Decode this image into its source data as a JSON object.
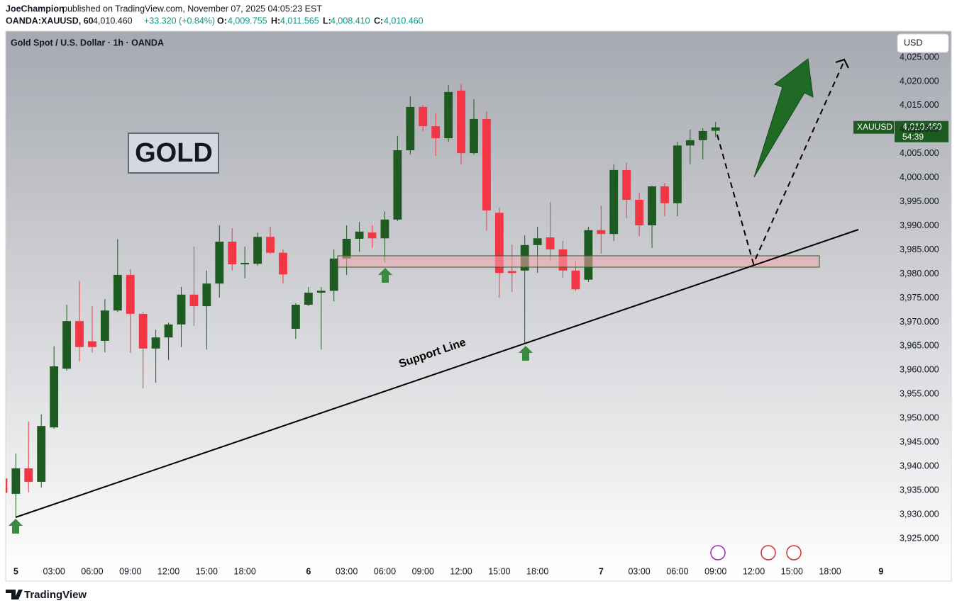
{
  "chart_data": {
    "type": "candlestick",
    "header": {
      "author": "JoeChampion",
      "published": "published on TradingView.com, November 07, 2025 04:05:23 EST",
      "symbol": "OANDA:XAUUSD, 60",
      "last": "4,010.460",
      "change": "+33.320 (+0.84%)",
      "o_label": "O:",
      "o": "4,009.755",
      "h_label": "H:",
      "h": "4,011.565",
      "l_label": "L:",
      "l": "4,008.410",
      "c_label": "C:",
      "c": "4,010.460"
    },
    "title": "Gold Spot / U.S. Dollar · 1h · OANDA",
    "currency": "USD",
    "annotations": {
      "gold": "GOLD",
      "support": "Support Line"
    },
    "price_tag": {
      "symbol": "XAUUSD",
      "price": "4,010.460",
      "countdown": "54:39"
    },
    "brand": "TradingView",
    "up_color": "#1e5b20",
    "down_color": "#f23645",
    "open": [
      3937.5,
      3934.3,
      3939.6,
      3936.8,
      3948.1,
      3960.3,
      3970.2,
      3966.0,
      3966.1,
      3972.4,
      3979.8,
      3971.7,
      3964.5,
      3966.8,
      3969.5,
      3975.7,
      3973.3,
      3978.0,
      3986.7,
      3982.0,
      3982.1,
      3987.7,
      3984.4,
      3968.6,
      3973.6,
      3976.1,
      3976.5,
      3983.2,
      3987.3,
      3988.6,
      3987.4,
      3991.3,
      4005.7,
      4014.7,
      4010.7,
      4008.2,
      4018.1,
      4005.1,
      4012.2,
      3992.7,
      3980.6,
      3980.7,
      3986.0,
      3987.6,
      3985.1,
      3980.7,
      3978.8,
      3989.1,
      3988.3,
      4001.6,
      3995.4,
      3990.1,
      3998.2,
      3994.7,
      4006.7,
      4007.8,
      4009.755
    ],
    "high": [
      3938,
      3942.7,
      3949.3,
      3950.8,
      3965.0,
      3973.6,
      3978.5,
      3973.3,
      3974.8,
      3987.2,
      3981.0,
      3972.1,
      3968.4,
      3969.9,
      3977.3,
      3985.7,
      3980.7,
      3990.1,
      3989.5,
      3985.7,
      3988.6,
      3989.8,
      3985.1,
      3973.9,
      3977.3,
      3977.3,
      3985.1,
      3990.1,
      3990.8,
      3990.1,
      3993.0,
      4008.7,
      4016.9,
      4015.1,
      4013.4,
      4019.3,
      4019.4,
      4016.3,
      4013.8,
      3993.8,
      3986.1,
      3988.0,
      3989.8,
      3995.0,
      3986.9,
      3982.7,
      3989.8,
      3994.2,
      4002.8,
      4003.1,
      3996.9,
      3998.3,
      3998.9,
      4007.5,
      4010.0,
      4010.3,
      4011.565
    ],
    "low": [
      3934,
      3929.4,
      3934.6,
      3935.6,
      3947.8,
      3959.9,
      3961.8,
      3963.7,
      3963.7,
      3972.1,
      3963.6,
      3956.2,
      3957.4,
      3962.1,
      3964.8,
      3969.2,
      3964.3,
      3975.1,
      3980.7,
      3979.1,
      3981.7,
      3984.2,
      3978.0,
      3966.5,
      3973.3,
      3964.3,
      3974.3,
      3979.8,
      3984.6,
      3985.4,
      3982.4,
      3991.0,
      4004.8,
      4009.7,
      4004.5,
      4007.5,
      4002.8,
      4004.8,
      3989.0,
      3975.1,
      3976.3,
      3965.5,
      3980.2,
      3982.7,
      3979.2,
      3976.5,
      3978.3,
      3984.2,
      3986.9,
      3991.6,
      3987.9,
      3985.4,
      3992.0,
      3992.0,
      4002.8,
      4003.8,
      4008.41
    ],
    "close": [
      3934.5,
      3939.6,
      3936.8,
      3948.4,
      3960.8,
      3970.2,
      3964.8,
      3964.8,
      3972.4,
      3979.8,
      3971.7,
      3964.5,
      3966.8,
      3969.5,
      3975.7,
      3973.3,
      3978.0,
      3986.7,
      3982.0,
      3982.3,
      3987.7,
      3984.4,
      3979.9,
      3973.6,
      3976.1,
      3976.5,
      3983.2,
      3987.3,
      3988.8,
      3987.4,
      3991.3,
      4005.7,
      4014.7,
      4010.7,
      4008.2,
      4017.8,
      4005.1,
      4012.2,
      3993.2,
      3980.2,
      3980.2,
      3986.0,
      3987.4,
      3985.1,
      3980.7,
      3976.8,
      3989.1,
      3988.3,
      4001.6,
      3995.4,
      3990.1,
      3998.2,
      3994.7,
      4006.7,
      4007.8,
      4009.7,
      4010.46
    ],
    "xlim": [
      0.2,
      69.9
    ],
    "xticks": [
      {
        "value": 1,
        "label": "5"
      },
      {
        "value": 4,
        "label": "03:00"
      },
      {
        "value": 7,
        "label": "06:00"
      },
      {
        "value": 10,
        "label": "09:00"
      },
      {
        "value": 13,
        "label": "12:00"
      },
      {
        "value": 16,
        "label": "15:00"
      },
      {
        "value": 19,
        "label": "18:00"
      },
      {
        "value": 24,
        "label": "6"
      },
      {
        "value": 27,
        "label": "03:00"
      },
      {
        "value": 30,
        "label": "06:00"
      },
      {
        "value": 33,
        "label": "09:00"
      },
      {
        "value": 36,
        "label": "12:00"
      },
      {
        "value": 39,
        "label": "15:00"
      },
      {
        "value": 42,
        "label": "18:00"
      },
      {
        "value": 47,
        "label": "7"
      },
      {
        "value": 50,
        "label": "03:00"
      },
      {
        "value": 53,
        "label": "06:00"
      },
      {
        "value": 56,
        "label": "09:00"
      },
      {
        "value": 59,
        "label": "12:00"
      },
      {
        "value": 62,
        "label": "15:00"
      },
      {
        "value": 65,
        "label": "18:00"
      },
      {
        "value": 69,
        "label": "9"
      }
    ],
    "ylim": [
      3919.85,
      4030.45
    ],
    "yticks": [
      {
        "value": 3925,
        "label": "3,925.000"
      },
      {
        "value": 3930,
        "label": "3,930.000"
      },
      {
        "value": 3935,
        "label": "3,935.000"
      },
      {
        "value": 3940,
        "label": "3,940.000"
      },
      {
        "value": 3945,
        "label": "3,945.000"
      },
      {
        "value": 3950,
        "label": "3,950.000"
      },
      {
        "value": 3955,
        "label": "3,955.000"
      },
      {
        "value": 3960,
        "label": "3,960.000"
      },
      {
        "value": 3965,
        "label": "3,965.000"
      },
      {
        "value": 3970,
        "label": "3,970.000"
      },
      {
        "value": 3975,
        "label": "3,975.000"
      },
      {
        "value": 3980,
        "label": "3,980.000"
      },
      {
        "value": 3985,
        "label": "3,985.000"
      },
      {
        "value": 3990,
        "label": "3,990.000"
      },
      {
        "value": 3995,
        "label": "3,995.000"
      },
      {
        "value": 4000,
        "label": "4,000.000"
      },
      {
        "value": 4005,
        "label": "4,005.000"
      },
      {
        "value": 4010,
        "label": "4,010.000"
      },
      {
        "value": 4015,
        "label": "4,015.000"
      },
      {
        "value": 4020,
        "label": "4,020.000"
      },
      {
        "value": 4025,
        "label": "4,025.000"
      }
    ],
    "grid": false
  }
}
